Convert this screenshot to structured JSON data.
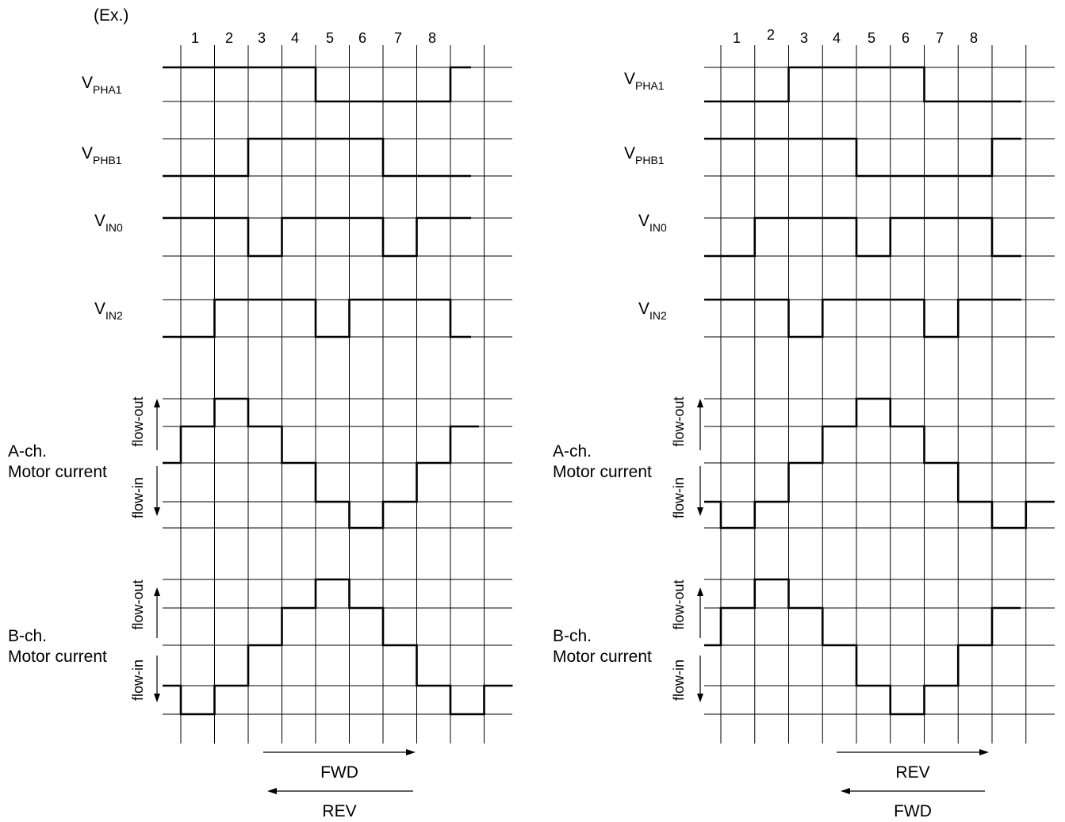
{
  "example_label": "(Ex.)",
  "column_numbers": [
    "1",
    "2",
    "3",
    "4",
    "5",
    "6",
    "7",
    "8"
  ],
  "signal_labels": [
    {
      "main": "V",
      "sub": "PHA1"
    },
    {
      "main": "V",
      "sub": "PHB1"
    },
    {
      "main": "V",
      "sub": "IN0"
    },
    {
      "main": "V",
      "sub": "IN2"
    }
  ],
  "channel_labels": {
    "a": [
      "A-ch.",
      "Motor current"
    ],
    "b": [
      "B-ch.",
      "Motor current"
    ]
  },
  "flow_out_label": "flow-out",
  "flow_in_label": "flow-in",
  "diagrams": [
    {
      "name": "left",
      "arrow_right_label": "FWD",
      "arrow_left_label": "REV",
      "signals": {
        "PHA1": [
          1,
          1,
          1,
          1,
          0,
          0,
          0,
          0,
          1
        ],
        "PHB1": [
          0,
          0,
          1,
          1,
          1,
          1,
          0,
          0,
          0
        ],
        "IN0": [
          1,
          1,
          0,
          1,
          1,
          1,
          0,
          1,
          1
        ],
        "IN2": [
          0,
          1,
          1,
          1,
          0,
          1,
          1,
          1,
          0
        ]
      },
      "a_current_levels": [
        0,
        1,
        2,
        1,
        0,
        -1,
        -2,
        -1,
        0,
        1
      ],
      "b_current_levels": [
        -1,
        -2,
        -1,
        0,
        1,
        2,
        1,
        0,
        -1,
        -2,
        -1
      ]
    },
    {
      "name": "right",
      "arrow_right_label": "REV",
      "arrow_left_label": "FWD",
      "signals": {
        "PHA1": [
          0,
          0,
          1,
          1,
          1,
          1,
          0,
          0,
          0
        ],
        "PHB1": [
          1,
          1,
          1,
          1,
          0,
          0,
          0,
          0,
          1
        ],
        "IN0": [
          0,
          1,
          1,
          1,
          0,
          1,
          1,
          1,
          0
        ],
        "IN2": [
          1,
          1,
          0,
          1,
          1,
          1,
          0,
          1,
          1
        ]
      },
      "a_current_levels": [
        -1,
        -2,
        -1,
        0,
        1,
        2,
        1,
        0,
        -1,
        -2,
        -1
      ],
      "b_current_levels": [
        0,
        1,
        2,
        1,
        0,
        -1,
        -2,
        -1,
        0,
        1
      ]
    }
  ]
}
